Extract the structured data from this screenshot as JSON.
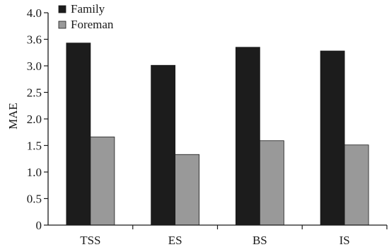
{
  "chart_data": {
    "type": "bar",
    "categories": [
      "TSS",
      "ES",
      "BS",
      "IS"
    ],
    "series": [
      {
        "name": "Family",
        "values": [
          3.43,
          3.01,
          3.35,
          3.28
        ],
        "color": "#1c1c1c"
      },
      {
        "name": "Foreman",
        "values": [
          1.66,
          1.33,
          1.59,
          1.51
        ],
        "color": "#999999"
      }
    ],
    "xlabel": "",
    "ylabel": "MAE",
    "ylim": [
      0,
      4.0
    ],
    "yticks": [
      "0",
      "0.5",
      "1.0",
      "1.5",
      "2.0",
      "2.5",
      "3.0",
      "3.6",
      "4.0"
    ],
    "grid": false,
    "legend_position": "top-left"
  }
}
